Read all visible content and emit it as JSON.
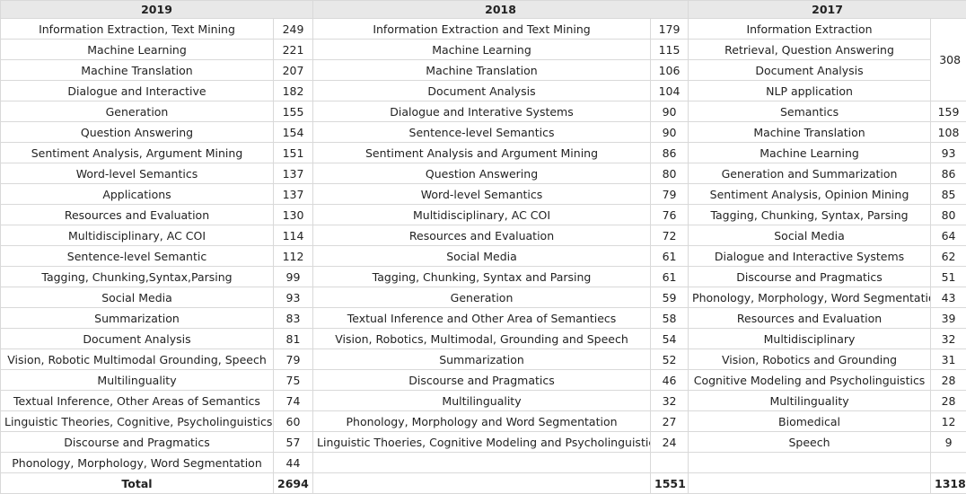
{
  "headers": [
    "2019",
    "2018",
    "2017"
  ],
  "rows": [
    [
      "Information Extraction, Text Mining",
      "249",
      "Information Extraction and Text Mining",
      "179",
      "Information Extraction",
      ""
    ],
    [
      "Machine Learning",
      "221",
      "Machine Learning",
      "115",
      "Retrieval, Question Answering",
      ""
    ],
    [
      "Machine Translation",
      "207",
      "Machine Translation",
      "106",
      "Document Analysis",
      ""
    ],
    [
      "Dialogue and Interactive",
      "182",
      "Document Analysis",
      "104",
      "NLP application",
      ""
    ],
    [
      "Generation",
      "155",
      "Dialogue and Interative Systems",
      "90",
      "Semantics",
      "159"
    ],
    [
      "Question Answering",
      "154",
      "Sentence-level Semantics",
      "90",
      "Machine Translation",
      "108"
    ],
    [
      "Sentiment Analysis, Argument Mining",
      "151",
      "Sentiment Analysis and Argument Mining",
      "86",
      "Machine Learning",
      "93"
    ],
    [
      "Word-level Semantics",
      "137",
      "Question Answering",
      "80",
      "Generation and Summarization",
      "86"
    ],
    [
      "Applications",
      "137",
      "Word-level Semantics",
      "79",
      "Sentiment Analysis, Opinion Mining",
      "85"
    ],
    [
      "Resources and Evaluation",
      "130",
      "Multidisciplinary, AC COI",
      "76",
      "Tagging, Chunking, Syntax, Parsing",
      "80"
    ],
    [
      "Multidisciplinary, AC COI",
      "114",
      "Resources and Evaluation",
      "72",
      "Social Media",
      "64"
    ],
    [
      "Sentence-level Semantic",
      "112",
      "Social Media",
      "61",
      "Dialogue and Interactive Systems",
      "62"
    ],
    [
      "Tagging, Chunking,Syntax,Parsing",
      "99",
      "Tagging, Chunking, Syntax and Parsing",
      "61",
      "Discourse and Pragmatics",
      "51"
    ],
    [
      "Social Media",
      "93",
      "Generation",
      "59",
      "Phonology, Morphology, Word Segmentation",
      "43"
    ],
    [
      "Summarization",
      "83",
      "Textual Inference and Other Area of Semantiecs",
      "58",
      "Resources and Evaluation",
      "39"
    ],
    [
      "Document Analysis",
      "81",
      "Vision, Robotics, Multimodal, Grounding and Speech",
      "54",
      "Multidisciplinary",
      "32"
    ],
    [
      "Vision, Robotic Multimodal Grounding, Speech",
      "79",
      "Summarization",
      "52",
      "Vision, Robotics and Grounding",
      "31"
    ],
    [
      "Multilinguality",
      "75",
      "Discourse and Pragmatics",
      "46",
      "Cognitive Modeling and Psycholinguistics",
      "28"
    ],
    [
      "Textual Inference, Other Areas of Semantics",
      "74",
      "Multilinguality",
      "32",
      "Multilinguality",
      "28"
    ],
    [
      "Linguistic Theories, Cognitive, Psycholinguistics",
      "60",
      "Phonology, Morphology and Word Segmentation",
      "27",
      "Biomedical",
      "12"
    ],
    [
      "Discourse and Pragmatics",
      "57",
      "Linguistic Thoeries, Cognitive Modeling and Psycholinguistics",
      "24",
      "Speech",
      "9"
    ],
    [
      "Phonology, Morphology, Word Segmentation",
      "44",
      "",
      "",
      "",
      ""
    ]
  ],
  "merged_2017_count": "308",
  "totals": {
    "label": "Total",
    "y2019": "2694",
    "y2018": "1551",
    "y2017": "1318"
  }
}
